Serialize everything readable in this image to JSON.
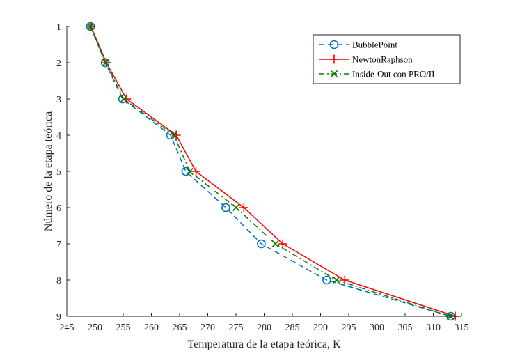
{
  "chart_data": {
    "type": "line",
    "xlabel": "Temperatura de la etapa teórica, K",
    "ylabel": "Número de la etapa teórica",
    "xlim": [
      245,
      315
    ],
    "ylim": [
      1,
      9
    ],
    "y_reversed": true,
    "xticks": [
      245,
      250,
      255,
      260,
      265,
      270,
      275,
      280,
      285,
      290,
      295,
      300,
      305,
      310,
      315
    ],
    "yticks": [
      1,
      2,
      3,
      4,
      5,
      6,
      7,
      8,
      9
    ],
    "grid": false,
    "legend_position": "top-right",
    "series": [
      {
        "name": "BubblePoint",
        "color": "#0072BD",
        "line_style": "dashed",
        "marker": "circle",
        "points": [
          [
            249.2,
            1
          ],
          [
            251.8,
            2
          ],
          [
            254.9,
            3
          ],
          [
            263.4,
            4
          ],
          [
            266.1,
            5
          ],
          [
            273.2,
            6
          ],
          [
            279.5,
            7
          ],
          [
            291.1,
            8
          ],
          [
            313.1,
            9
          ]
        ]
      },
      {
        "name": "NewtonRaphson",
        "color": "#FF0000",
        "line_style": "solid",
        "marker": "plus",
        "points": [
          [
            249.3,
            1
          ],
          [
            252.0,
            2
          ],
          [
            255.6,
            3
          ],
          [
            264.4,
            4
          ],
          [
            267.9,
            5
          ],
          [
            276.4,
            6
          ],
          [
            283.3,
            7
          ],
          [
            294.3,
            8
          ],
          [
            313.9,
            9
          ]
        ]
      },
      {
        "name": "Inside-Out con PRO/II",
        "color": "#008000",
        "line_style": "dashdot",
        "marker": "x",
        "points": [
          [
            249.2,
            1
          ],
          [
            251.9,
            2
          ],
          [
            255.1,
            3
          ],
          [
            264.0,
            4
          ],
          [
            266.8,
            5
          ],
          [
            275.0,
            6
          ],
          [
            282.0,
            7
          ],
          [
            292.8,
            8
          ],
          [
            313.0,
            9
          ]
        ]
      }
    ]
  }
}
